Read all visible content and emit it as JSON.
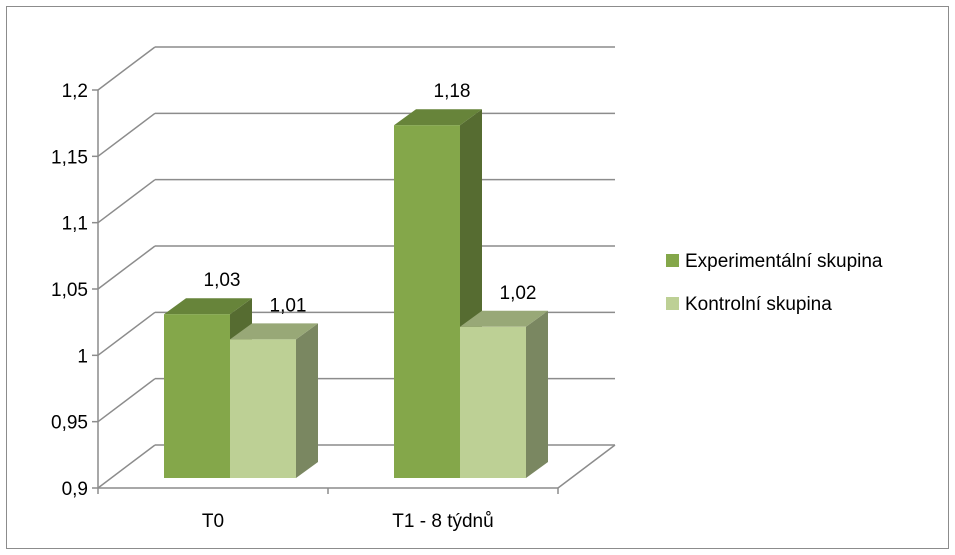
{
  "chart_data": {
    "type": "bar",
    "style": "3d-clustered-column",
    "categories": [
      "T0",
      "T1 - 8 týdnů"
    ],
    "series": [
      {
        "name": "Experimentální skupina",
        "values": [
          1.03,
          1.18
        ],
        "labels": [
          "1,03",
          "1,18"
        ],
        "color": "#84a74a",
        "top_color": "#67843a",
        "side_color": "#566c31"
      },
      {
        "name": "Kontrolní skupina",
        "values": [
          1.01,
          1.02
        ],
        "labels": [
          "1,01",
          "1,02"
        ],
        "color": "#bdd095",
        "top_color": "#98a877",
        "side_color": "#7a8761"
      }
    ],
    "ylim": [
      0.9,
      1.2
    ],
    "yticks": [
      0.9,
      0.95,
      1,
      1.05,
      1.1,
      1.15,
      1.2
    ],
    "ytick_labels": [
      "0,9",
      "0,95",
      "1",
      "1,05",
      "1,1",
      "1,15",
      "1,2"
    ],
    "grid": true,
    "legend_position": "right",
    "title": "",
    "xlabel": "",
    "ylabel": ""
  }
}
